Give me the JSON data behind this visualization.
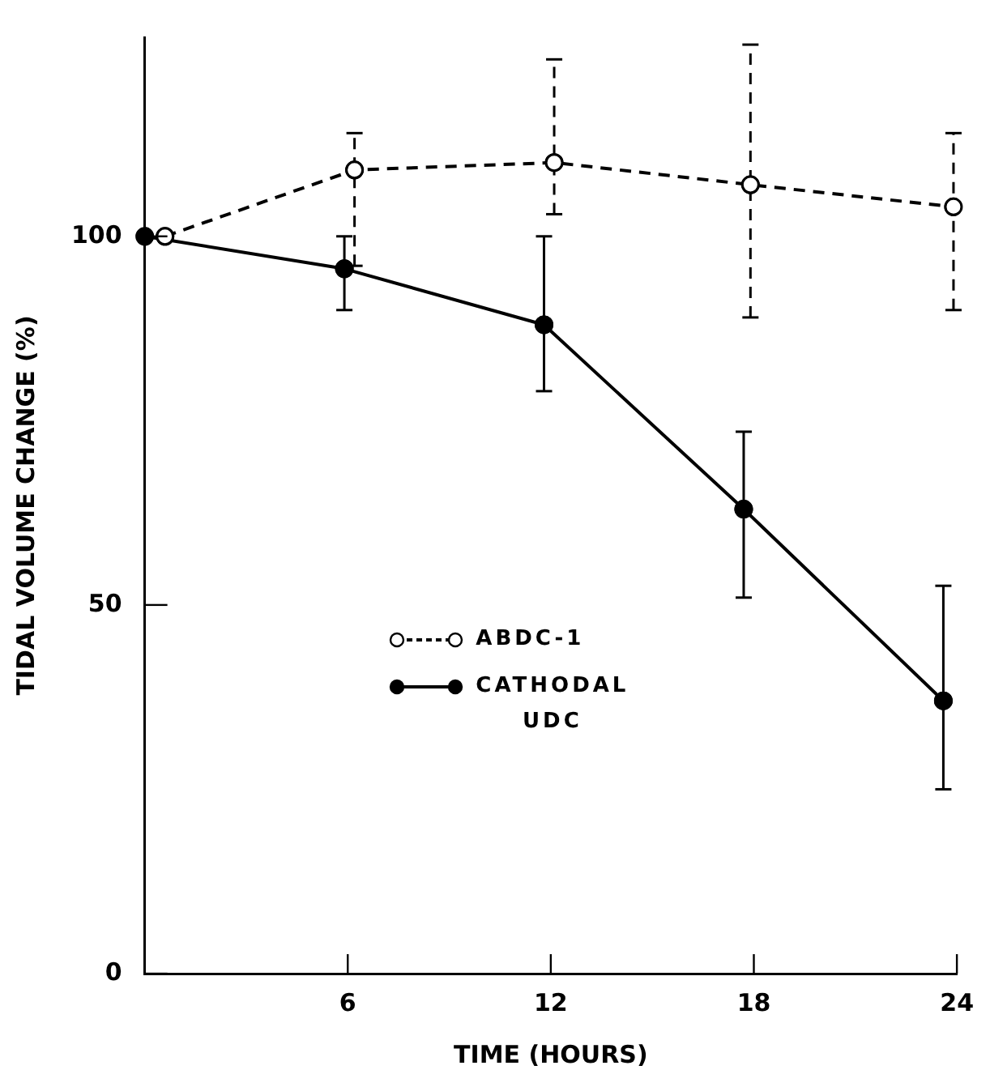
{
  "chart_data": {
    "type": "line",
    "xlabel": "TIME (HOURS)",
    "ylabel": "TIDAL VOLUME CHANGE (%)",
    "xlim": [
      0,
      24
    ],
    "xticks": [
      6,
      12,
      18,
      24
    ],
    "ylim": [
      0,
      127
    ],
    "yticks": [
      0,
      50,
      100
    ],
    "grid": false,
    "legend": "center left",
    "marker": "circle",
    "series": [
      {
        "name": "ABDC-1",
        "color": "#000000",
        "line_style": "dashed",
        "marker": "circle-open",
        "x": [
          0.6,
          6.2,
          12.1,
          17.9,
          23.9
        ],
        "values": [
          100,
          109,
          110,
          107,
          104
        ],
        "errors": [
          null,
          [
            96,
            114
          ],
          [
            103,
            124
          ],
          [
            89,
            126
          ],
          [
            90,
            114
          ]
        ]
      },
      {
        "name": "CATHODAL UDC",
        "color": "#000000",
        "line_style": "solid",
        "x": [
          0,
          5.9,
          11.8,
          17.7,
          23.6
        ],
        "values": [
          100,
          95.6,
          88,
          63,
          37
        ],
        "errors": [
          null,
          [
            90,
            100
          ],
          [
            79,
            100
          ],
          [
            51,
            73.5
          ],
          [
            25,
            52.6
          ]
        ]
      }
    ]
  }
}
